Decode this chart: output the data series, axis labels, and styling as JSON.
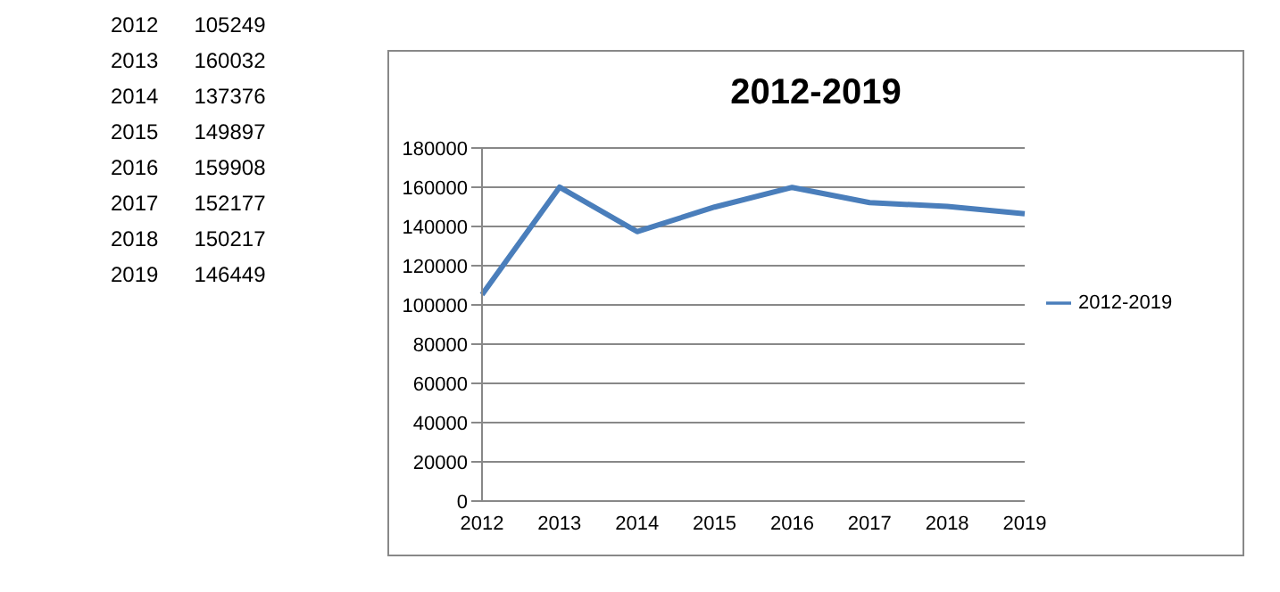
{
  "chart_data": {
    "type": "line",
    "title": "2012-2019",
    "categories": [
      "2012",
      "2013",
      "2014",
      "2015",
      "2016",
      "2017",
      "2018",
      "2019"
    ],
    "series": [
      {
        "name": "2012-2019",
        "color": "#4a7ebb",
        "values": [
          105249,
          160032,
          137376,
          149897,
          159908,
          152177,
          150217,
          146449
        ]
      }
    ],
    "ylim": [
      0,
      180000
    ],
    "yticks": [
      0,
      20000,
      40000,
      60000,
      80000,
      100000,
      120000,
      140000,
      160000,
      180000
    ],
    "grid": "y",
    "legend": "right",
    "marker": "none",
    "line_style": "solid",
    "annotations": [
      "2012      105249",
      "2013      160032",
      "2014      137376",
      "2015      149897",
      "2016      159908",
      "2017      152177",
      "2018      150217",
      "2019      146449"
    ]
  }
}
